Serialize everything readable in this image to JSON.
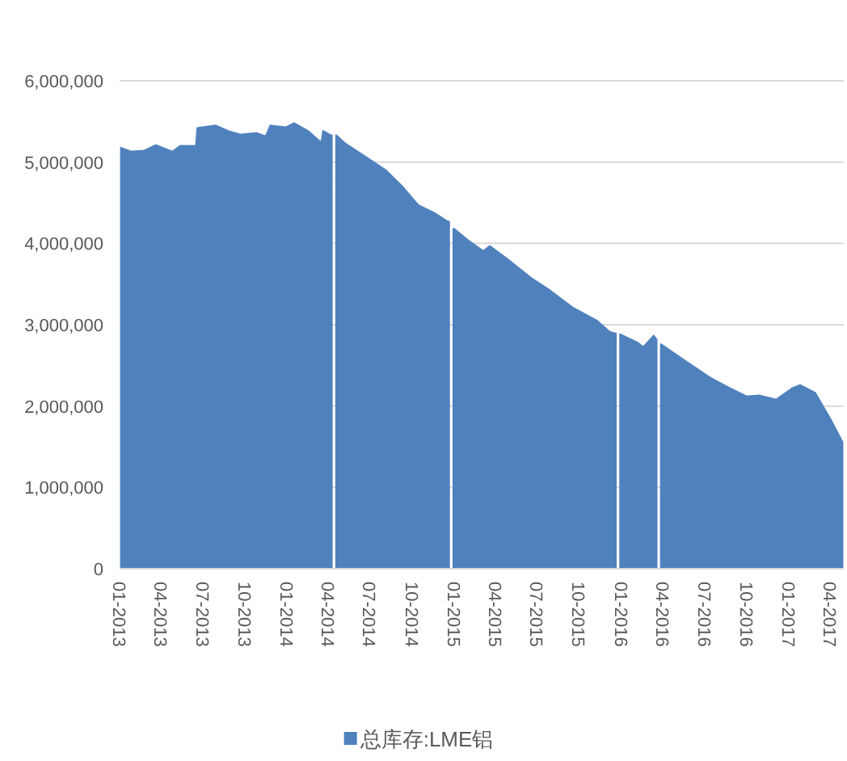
{
  "chart_data": {
    "type": "area",
    "x": [
      "2013-01-02",
      "2013-01-26",
      "2013-02-23",
      "2013-03-21",
      "2013-04-26",
      "2013-05-13",
      "2013-06-15",
      "2013-06-18",
      "2013-07-30",
      "2013-08-28",
      "2013-09-22",
      "2013-10-27",
      "2013-11-15",
      "2013-11-25",
      "2013-12-30",
      "2014-01-17",
      "2014-02-18",
      "2014-03-16",
      "2014-03-20",
      "2014-04-08",
      "2014-04-14",
      "2014-04-20",
      "2014-05-09",
      "2014-06-13",
      "2014-08-06",
      "2014-09-11",
      "2014-10-16",
      "2014-11-21",
      "2014-12-19",
      "2014-12-26",
      "2015-01-02",
      "2015-02-01",
      "2015-03-06",
      "2015-03-20",
      "2015-04-28",
      "2015-06-20",
      "2015-07-26",
      "2015-09-18",
      "2015-11-10",
      "2015-12-08",
      "2015-12-22",
      "2015-12-25",
      "2015-12-31",
      "2016-02-07",
      "2016-02-18",
      "2016-03-12",
      "2016-03-19",
      "2016-03-23",
      "2016-03-29",
      "2016-05-22",
      "2016-07-14",
      "2016-08-26",
      "2016-10-01",
      "2016-10-29",
      "2016-12-04",
      "2017-01-08",
      "2017-01-26",
      "2017-03-01",
      "2017-04-05",
      "2017-04-30"
    ],
    "series": [
      {
        "name": "总库存:LME铝",
        "color": "#4f81bd",
        "values": [
          5190000,
          5140000,
          5150000,
          5220000,
          5140000,
          5210000,
          5210000,
          5430000,
          5460000,
          5390000,
          5350000,
          5370000,
          5330000,
          5460000,
          5440000,
          5490000,
          5390000,
          5260000,
          5400000,
          5340000,
          null,
          5340000,
          5240000,
          5110000,
          4910000,
          4710000,
          4480000,
          4380000,
          4280000,
          null,
          4190000,
          4050000,
          3920000,
          3980000,
          3820000,
          3580000,
          3450000,
          3220000,
          3060000,
          2920000,
          2900000,
          null,
          2890000,
          2790000,
          2740000,
          2880000,
          2830000,
          null,
          2770000,
          2560000,
          2360000,
          2230000,
          2130000,
          2140000,
          2090000,
          2230000,
          2270000,
          2170000,
          1830000,
          1560000
        ]
      }
    ],
    "xlim": [
      "2013-01-01",
      "2017-05-01"
    ],
    "xticks": [
      {
        "value": "2013-01",
        "label": "01-2013"
      },
      {
        "value": "2013-04",
        "label": "04-2013"
      },
      {
        "value": "2013-07",
        "label": "07-2013"
      },
      {
        "value": "2013-10",
        "label": "10-2013"
      },
      {
        "value": "2014-01",
        "label": "01-2014"
      },
      {
        "value": "2014-04",
        "label": "04-2014"
      },
      {
        "value": "2014-07",
        "label": "07-2014"
      },
      {
        "value": "2014-10",
        "label": "10-2014"
      },
      {
        "value": "2015-01",
        "label": "01-2015"
      },
      {
        "value": "2015-04",
        "label": "04-2015"
      },
      {
        "value": "2015-07",
        "label": "07-2015"
      },
      {
        "value": "2015-10",
        "label": "10-2015"
      },
      {
        "value": "2016-01",
        "label": "01-2016"
      },
      {
        "value": "2016-04",
        "label": "04-2016"
      },
      {
        "value": "2016-07",
        "label": "07-2016"
      },
      {
        "value": "2016-10",
        "label": "10-2016"
      },
      {
        "value": "2017-01",
        "label": "01-2017"
      },
      {
        "value": "2017-04",
        "label": "04-2017"
      }
    ],
    "ylim": [
      0,
      6000000
    ],
    "yticks": [
      {
        "value": 0,
        "label": "0"
      },
      {
        "value": 1000000,
        "label": "1,000,000"
      },
      {
        "value": 2000000,
        "label": "2,000,000"
      },
      {
        "value": 3000000,
        "label": "3,000,000"
      },
      {
        "value": 4000000,
        "label": "4,000,000"
      },
      {
        "value": 5000000,
        "label": "5,000,000"
      },
      {
        "value": 6000000,
        "label": "6,000,000"
      }
    ],
    "grid": "y",
    "legend": "bottom"
  }
}
